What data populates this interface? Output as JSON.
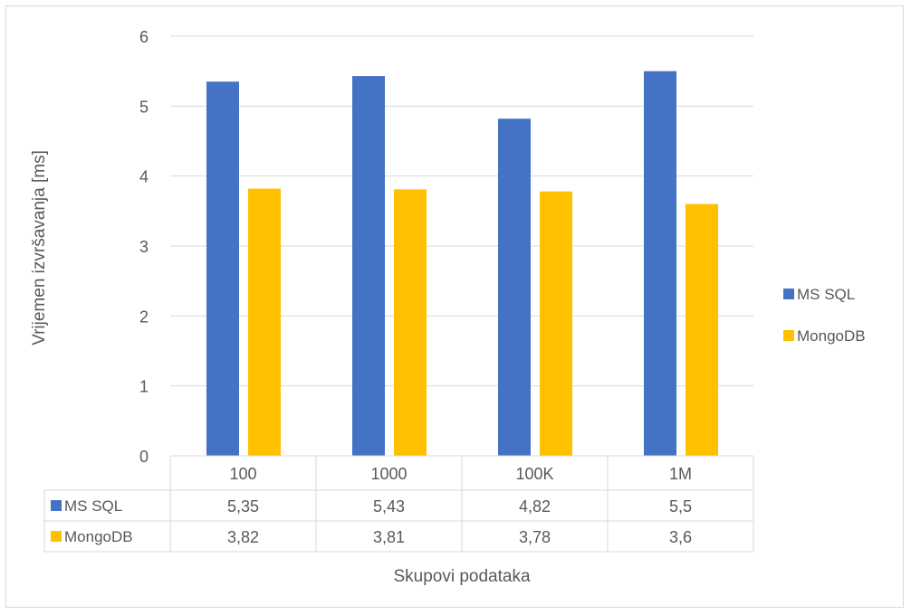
{
  "chart_data": {
    "type": "bar",
    "title": "",
    "xlabel": "Skupovi podataka",
    "ylabel": "Vrijemen izvršavanja [ms]",
    "ylim": [
      0,
      6
    ],
    "yticks": [
      "0",
      "1",
      "2",
      "3",
      "4",
      "5",
      "6"
    ],
    "grid": true,
    "legend_position": "right",
    "categories": [
      "100",
      "1000",
      "100K",
      "1M"
    ],
    "series": [
      {
        "name": "MS SQL",
        "color": "#4472c4",
        "values": [
          5.35,
          5.43,
          4.82,
          5.5
        ],
        "labels": [
          "5,35",
          "5,43",
          "4,82",
          "5,5"
        ]
      },
      {
        "name": "MongoDB",
        "color": "#ffc000",
        "values": [
          3.82,
          3.81,
          3.78,
          3.6
        ],
        "labels": [
          "3,82",
          "3,81",
          "3,78",
          "3,6"
        ]
      }
    ]
  }
}
